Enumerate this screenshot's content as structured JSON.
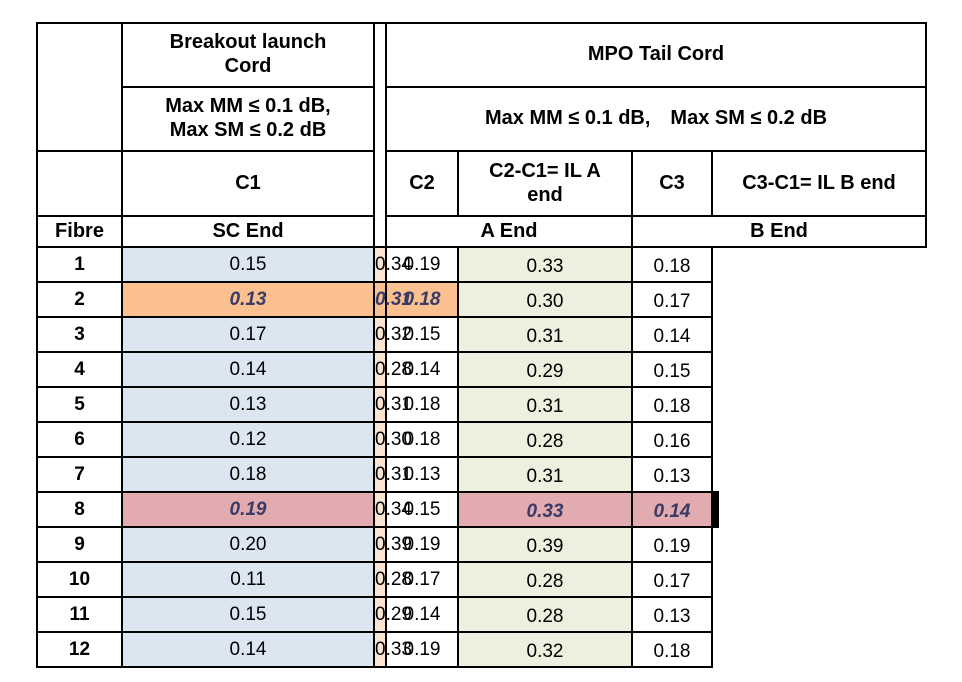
{
  "header": {
    "breakout_title": "Breakout launch\nCord",
    "breakout_limit": "Max MM ≤ 0.1 dB,\nMax SM ≤ 0.2 dB",
    "mpo_title": "MPO Tail Cord",
    "mpo_limit": "Max MM ≤ 0.1 dB, Max SM ≤ 0.2 dB",
    "col_c1": "C1",
    "col_c2": "C2",
    "col_c2c1": "C2-C1= IL A\nend",
    "col_c3": "C3",
    "col_c3c1": "C3-C1= IL B end",
    "fibre": "Fibre",
    "sc_end": "SC End",
    "a_end": "A End",
    "b_end": "B End"
  },
  "colors": {
    "c1_fill": "#DCE6F1",
    "c2_fill": "#FCE4D1",
    "c3_fill": "#EBF1DE",
    "highlight_a": "#FAC090",
    "highlight_b": "#E1ABAF",
    "highlight_text": "#3A3A66",
    "border": "#000000"
  },
  "rows": [
    {
      "fibre": "1",
      "c1": "0.15",
      "c2": "0.34",
      "c2c1": "0.19",
      "c3": "0.33",
      "c3c1": "0.18",
      "highlight": null
    },
    {
      "fibre": "2",
      "c1": "0.13",
      "c2": "0.31",
      "c2c1": "0.18",
      "c3": "0.30",
      "c3c1": "0.17",
      "highlight": "a"
    },
    {
      "fibre": "3",
      "c1": "0.17",
      "c2": "0.32",
      "c2c1": "0.15",
      "c3": "0.31",
      "c3c1": "0.14",
      "highlight": null
    },
    {
      "fibre": "4",
      "c1": "0.14",
      "c2": "0.28",
      "c2c1": "0.14",
      "c3": "0.29",
      "c3c1": "0.15",
      "highlight": null
    },
    {
      "fibre": "5",
      "c1": "0.13",
      "c2": "0.31",
      "c2c1": "0.18",
      "c3": "0.31",
      "c3c1": "0.18",
      "highlight": null
    },
    {
      "fibre": "6",
      "c1": "0.12",
      "c2": "0.30",
      "c2c1": "0.18",
      "c3": "0.28",
      "c3c1": "0.16",
      "highlight": null
    },
    {
      "fibre": "7",
      "c1": "0.18",
      "c2": "0.31",
      "c2c1": "0.13",
      "c3": "0.31",
      "c3c1": "0.13",
      "highlight": null
    },
    {
      "fibre": "8",
      "c1": "0.19",
      "c2": "0.34",
      "c2c1": "0.15",
      "c3": "0.33",
      "c3c1": "0.14",
      "highlight": "b"
    },
    {
      "fibre": "9",
      "c1": "0.20",
      "c2": "0.39",
      "c2c1": "0.19",
      "c3": "0.39",
      "c3c1": "0.19",
      "highlight": null
    },
    {
      "fibre": "10",
      "c1": "0.11",
      "c2": "0.28",
      "c2c1": "0.17",
      "c3": "0.28",
      "c3c1": "0.17",
      "highlight": null
    },
    {
      "fibre": "11",
      "c1": "0.15",
      "c2": "0.29",
      "c2c1": "0.14",
      "c3": "0.28",
      "c3c1": "0.13",
      "highlight": null
    },
    {
      "fibre": "12",
      "c1": "0.14",
      "c2": "0.33",
      "c2c1": "0.19",
      "c3": "0.32",
      "c3c1": "0.18",
      "highlight": null
    }
  ]
}
